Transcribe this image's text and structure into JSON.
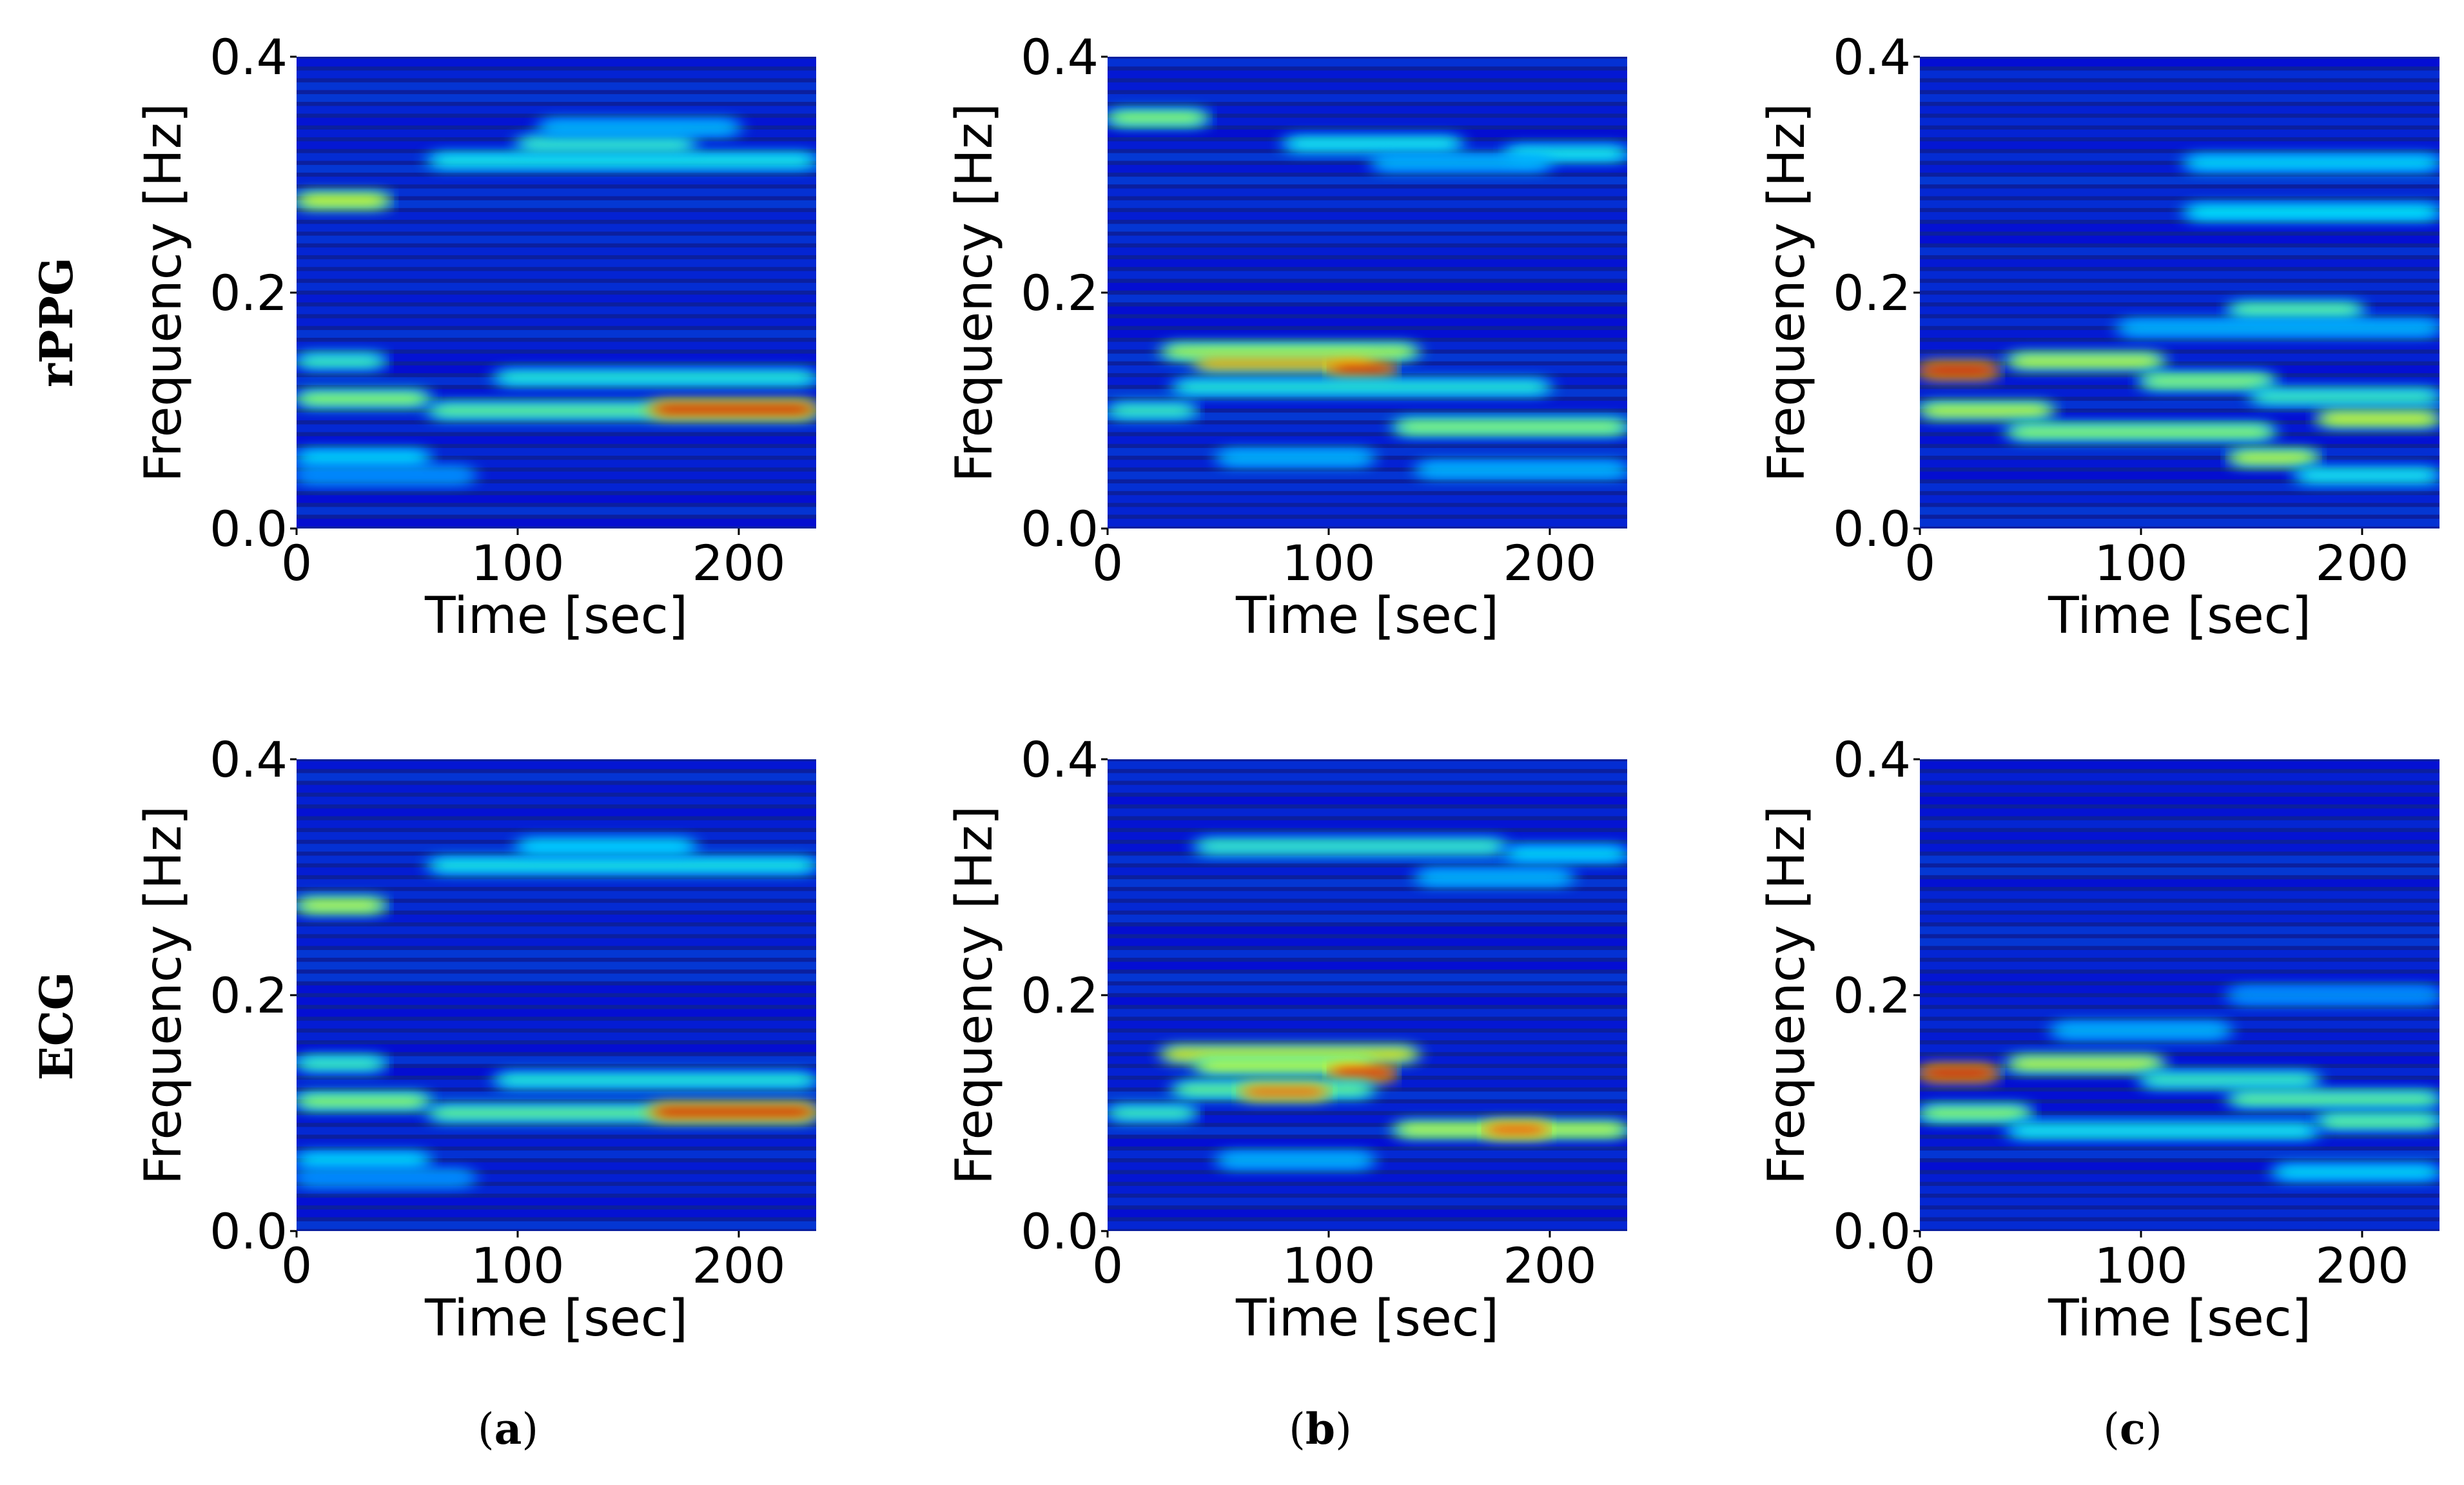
{
  "figure": {
    "row_labels": [
      "rPPG",
      "ECG"
    ],
    "column_labels": [
      {
        "open": "(",
        "letter": "a",
        "close": ")"
      },
      {
        "open": "(",
        "letter": "b",
        "close": ")"
      },
      {
        "open": "(",
        "letter": "c",
        "close": ")"
      }
    ]
  },
  "chart_data": [
    {
      "type": "heatmap",
      "id": "rppg-a",
      "row": "rPPG",
      "column": "a",
      "xlabel": "Time [sec]",
      "ylabel": "Frequency [Hz]",
      "xlim": [
        0,
        235
      ],
      "ylim": [
        0,
        0.4
      ],
      "xticks": [
        0,
        100,
        200
      ],
      "yticks": [
        0.0,
        0.2,
        0.4
      ],
      "xtick_labels": [
        "0",
        "100",
        "200"
      ],
      "ytick_labels": [
        "0.0",
        "0.2",
        "0.4"
      ],
      "colormap": "jet",
      "background": "#0b1f9e",
      "bands": [
        {
          "f": 0.278,
          "t0": 0,
          "t1": 42,
          "level": 0.62
        },
        {
          "f": 0.312,
          "t0": 60,
          "t1": 235,
          "level": 0.4
        },
        {
          "f": 0.326,
          "t0": 100,
          "t1": 180,
          "level": 0.45
        },
        {
          "f": 0.34,
          "t0": 110,
          "t1": 200,
          "level": 0.3
        },
        {
          "f": 0.142,
          "t0": 0,
          "t1": 40,
          "level": 0.45
        },
        {
          "f": 0.128,
          "t0": 90,
          "t1": 235,
          "level": 0.42
        },
        {
          "f": 0.11,
          "t0": 0,
          "t1": 60,
          "level": 0.55
        },
        {
          "f": 0.1,
          "t0": 60,
          "t1": 235,
          "level": 0.5
        },
        {
          "f": 0.101,
          "t0": 160,
          "t1": 235,
          "level": 0.92
        },
        {
          "f": 0.06,
          "t0": 0,
          "t1": 60,
          "level": 0.35
        },
        {
          "f": 0.045,
          "t0": 0,
          "t1": 80,
          "level": 0.25
        }
      ]
    },
    {
      "type": "heatmap",
      "id": "rppg-b",
      "row": "rPPG",
      "column": "b",
      "xlabel": "Time [sec]",
      "ylabel": "Frequency [Hz]",
      "xlim": [
        0,
        235
      ],
      "ylim": [
        0,
        0.4
      ],
      "xticks": [
        0,
        100,
        200
      ],
      "yticks": [
        0.0,
        0.2,
        0.4
      ],
      "xtick_labels": [
        "0",
        "100",
        "200"
      ],
      "ytick_labels": [
        "0.0",
        "0.2",
        "0.4"
      ],
      "colormap": "jet",
      "background": "#0b1f9e",
      "bands": [
        {
          "f": 0.348,
          "t0": 0,
          "t1": 45,
          "level": 0.55
        },
        {
          "f": 0.326,
          "t0": 80,
          "t1": 160,
          "level": 0.4
        },
        {
          "f": 0.318,
          "t0": 180,
          "t1": 235,
          "level": 0.4
        },
        {
          "f": 0.31,
          "t0": 120,
          "t1": 200,
          "level": 0.3
        },
        {
          "f": 0.15,
          "t0": 25,
          "t1": 140,
          "level": 0.58
        },
        {
          "f": 0.14,
          "t0": 40,
          "t1": 120,
          "level": 0.72
        },
        {
          "f": 0.134,
          "t0": 100,
          "t1": 130,
          "level": 0.92
        },
        {
          "f": 0.12,
          "t0": 30,
          "t1": 200,
          "level": 0.42
        },
        {
          "f": 0.1,
          "t0": 0,
          "t1": 40,
          "level": 0.45
        },
        {
          "f": 0.086,
          "t0": 130,
          "t1": 235,
          "level": 0.55
        },
        {
          "f": 0.06,
          "t0": 50,
          "t1": 120,
          "level": 0.3
        },
        {
          "f": 0.05,
          "t0": 140,
          "t1": 235,
          "level": 0.3
        }
      ]
    },
    {
      "type": "heatmap",
      "id": "rppg-c",
      "row": "rPPG",
      "column": "c",
      "xlabel": "Time [sec]",
      "ylabel": "Frequency [Hz]",
      "xlim": [
        0,
        235
      ],
      "ylim": [
        0,
        0.4
      ],
      "xticks": [
        0,
        100,
        200
      ],
      "yticks": [
        0.0,
        0.2,
        0.4
      ],
      "xtick_labels": [
        "0",
        "100",
        "200"
      ],
      "ytick_labels": [
        "0.0",
        "0.2",
        "0.4"
      ],
      "colormap": "jet",
      "background": "#0b1f9e",
      "bands": [
        {
          "f": 0.31,
          "t0": 120,
          "t1": 235,
          "level": 0.35
        },
        {
          "f": 0.268,
          "t0": 120,
          "t1": 235,
          "level": 0.38
        },
        {
          "f": 0.185,
          "t0": 140,
          "t1": 200,
          "level": 0.5
        },
        {
          "f": 0.17,
          "t0": 90,
          "t1": 235,
          "level": 0.3
        },
        {
          "f": 0.134,
          "t0": 0,
          "t1": 35,
          "level": 0.92
        },
        {
          "f": 0.142,
          "t0": 40,
          "t1": 110,
          "level": 0.6
        },
        {
          "f": 0.125,
          "t0": 100,
          "t1": 160,
          "level": 0.55
        },
        {
          "f": 0.112,
          "t0": 150,
          "t1": 235,
          "level": 0.45
        },
        {
          "f": 0.1,
          "t0": 0,
          "t1": 60,
          "level": 0.6
        },
        {
          "f": 0.093,
          "t0": 180,
          "t1": 235,
          "level": 0.62
        },
        {
          "f": 0.082,
          "t0": 40,
          "t1": 160,
          "level": 0.55
        },
        {
          "f": 0.06,
          "t0": 140,
          "t1": 180,
          "level": 0.6
        },
        {
          "f": 0.045,
          "t0": 170,
          "t1": 235,
          "level": 0.4
        }
      ]
    },
    {
      "type": "heatmap",
      "id": "ecg-a",
      "row": "ECG",
      "column": "a",
      "xlabel": "Time [sec]",
      "ylabel": "Frequency [Hz]",
      "xlim": [
        0,
        235
      ],
      "ylim": [
        0,
        0.4
      ],
      "xticks": [
        0,
        100,
        200
      ],
      "yticks": [
        0.0,
        0.2,
        0.4
      ],
      "xtick_labels": [
        "0",
        "100",
        "200"
      ],
      "ytick_labels": [
        "0.0",
        "0.2",
        "0.4"
      ],
      "colormap": "jet",
      "background": "#0b1f9e",
      "bands": [
        {
          "f": 0.276,
          "t0": 0,
          "t1": 40,
          "level": 0.6
        },
        {
          "f": 0.31,
          "t0": 60,
          "t1": 235,
          "level": 0.4
        },
        {
          "f": 0.326,
          "t0": 100,
          "t1": 180,
          "level": 0.35
        },
        {
          "f": 0.142,
          "t0": 0,
          "t1": 40,
          "level": 0.45
        },
        {
          "f": 0.128,
          "t0": 90,
          "t1": 235,
          "level": 0.42
        },
        {
          "f": 0.11,
          "t0": 0,
          "t1": 60,
          "level": 0.55
        },
        {
          "f": 0.1,
          "t0": 60,
          "t1": 235,
          "level": 0.5
        },
        {
          "f": 0.101,
          "t0": 160,
          "t1": 235,
          "level": 0.92
        },
        {
          "f": 0.06,
          "t0": 0,
          "t1": 60,
          "level": 0.35
        },
        {
          "f": 0.045,
          "t0": 0,
          "t1": 80,
          "level": 0.25
        }
      ]
    },
    {
      "type": "heatmap",
      "id": "ecg-b",
      "row": "ECG",
      "column": "b",
      "xlabel": "Time [sec]",
      "ylabel": "Frequency [Hz]",
      "xlim": [
        0,
        235
      ],
      "ylim": [
        0,
        0.4
      ],
      "xticks": [
        0,
        100,
        200
      ],
      "yticks": [
        0.0,
        0.2,
        0.4
      ],
      "xtick_labels": [
        "0",
        "100",
        "200"
      ],
      "ytick_labels": [
        "0.0",
        "0.2",
        "0.4"
      ],
      "colormap": "jet",
      "background": "#0b1f9e",
      "bands": [
        {
          "f": 0.326,
          "t0": 40,
          "t1": 180,
          "level": 0.45
        },
        {
          "f": 0.32,
          "t0": 180,
          "t1": 235,
          "level": 0.35
        },
        {
          "f": 0.3,
          "t0": 140,
          "t1": 210,
          "level": 0.3
        },
        {
          "f": 0.15,
          "t0": 25,
          "t1": 140,
          "level": 0.65
        },
        {
          "f": 0.14,
          "t0": 40,
          "t1": 120,
          "level": 0.6
        },
        {
          "f": 0.134,
          "t0": 100,
          "t1": 130,
          "level": 0.9
        },
        {
          "f": 0.12,
          "t0": 30,
          "t1": 120,
          "level": 0.5
        },
        {
          "f": 0.118,
          "t0": 60,
          "t1": 100,
          "level": 0.8
        },
        {
          "f": 0.1,
          "t0": 0,
          "t1": 40,
          "level": 0.45
        },
        {
          "f": 0.086,
          "t0": 130,
          "t1": 235,
          "level": 0.6
        },
        {
          "f": 0.086,
          "t0": 170,
          "t1": 200,
          "level": 0.82
        },
        {
          "f": 0.06,
          "t0": 50,
          "t1": 120,
          "level": 0.3
        }
      ]
    },
    {
      "type": "heatmap",
      "id": "ecg-c",
      "row": "ECG",
      "column": "c",
      "xlabel": "Time [sec]",
      "ylabel": "Frequency [Hz]",
      "xlim": [
        0,
        235
      ],
      "ylim": [
        0,
        0.4
      ],
      "xticks": [
        0,
        100,
        200
      ],
      "yticks": [
        0.0,
        0.2,
        0.4
      ],
      "xtick_labels": [
        "0",
        "100",
        "200"
      ],
      "ytick_labels": [
        "0.0",
        "0.2",
        "0.4"
      ],
      "colormap": "jet",
      "background": "#0b1f9e",
      "bands": [
        {
          "f": 0.2,
          "t0": 140,
          "t1": 235,
          "level": 0.25
        },
        {
          "f": 0.17,
          "t0": 60,
          "t1": 140,
          "level": 0.3
        },
        {
          "f": 0.134,
          "t0": 0,
          "t1": 35,
          "level": 0.92
        },
        {
          "f": 0.142,
          "t0": 40,
          "t1": 110,
          "level": 0.6
        },
        {
          "f": 0.128,
          "t0": 100,
          "t1": 180,
          "level": 0.45
        },
        {
          "f": 0.112,
          "t0": 140,
          "t1": 235,
          "level": 0.5
        },
        {
          "f": 0.1,
          "t0": 0,
          "t1": 50,
          "level": 0.55
        },
        {
          "f": 0.093,
          "t0": 180,
          "t1": 235,
          "level": 0.5
        },
        {
          "f": 0.085,
          "t0": 40,
          "t1": 180,
          "level": 0.4
        },
        {
          "f": 0.05,
          "t0": 160,
          "t1": 235,
          "level": 0.35
        }
      ]
    }
  ]
}
